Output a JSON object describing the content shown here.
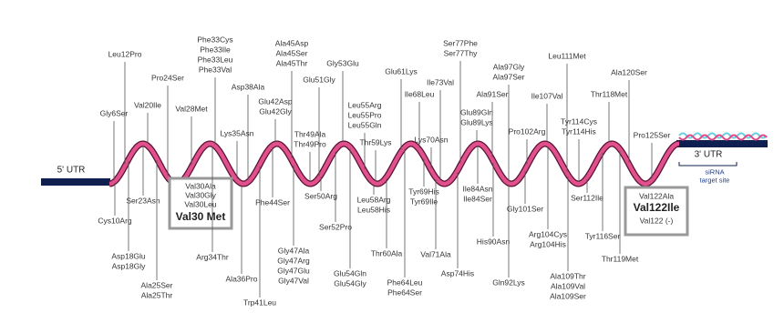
{
  "utr5": "5' UTR",
  "utr3": "3' UTR",
  "sirna": [
    "siRNA",
    "target site"
  ],
  "top_labels": [
    [
      "Leu12Pro"
    ],
    [
      "Gly6Ser"
    ],
    [
      "Val20Ile"
    ],
    [
      "Pro24Ser"
    ],
    [
      "Val28Met"
    ],
    [
      "Phe33Cys",
      "Phe33Ile",
      "Phe33Leu",
      "Phe33Val"
    ],
    [
      "Asp38Ala"
    ],
    [
      "Lys35Asn"
    ],
    [
      "Glu42Asp",
      "Glu42Gly"
    ],
    [
      "Ala45Asp",
      "Ala45Ser",
      "Ala45Thr"
    ],
    [
      "Glu51Gly"
    ],
    [
      "Gly53Glu"
    ],
    [
      "Thr49Ala",
      "Thr49Pro"
    ],
    [
      "Leu55Arg",
      "Leu55Pro",
      "Leu55Gln"
    ],
    [
      "Thr59Lys"
    ],
    [
      "Glu61Lys"
    ],
    [
      "Ile68Leu"
    ],
    [
      "Ile73Val"
    ],
    [
      "Lys70Asn"
    ],
    [
      "Ser77Phe",
      "Ser77Thy"
    ],
    [
      "Glu89Gln",
      "Glu89Lys"
    ],
    [
      "Ala97Gly",
      "Ala97Ser"
    ],
    [
      "Ala91Ser"
    ],
    [
      "Pro102Arg"
    ],
    [
      "Leu111Met"
    ],
    [
      "Ile107Val"
    ],
    [
      "Tyr114Cys",
      "Tyr114His"
    ],
    [
      "Ala120Ser"
    ],
    [
      "Thr118Met"
    ],
    [
      "Pro125Ser"
    ]
  ],
  "bottom_labels": [
    [
      "Cys10Arg"
    ],
    [
      "Ser23Asn"
    ],
    [
      "Asp18Glu",
      "Asp18Gly"
    ],
    [
      "Ala25Ser",
      "Ala25Thr"
    ],
    [
      "Arg34Thr"
    ],
    [
      "Ala36Pro"
    ],
    [
      "Trp41Leu"
    ],
    [
      "Phe44Ser"
    ],
    [
      "Gly47Ala",
      "Gly47Arg",
      "Gly47Glu",
      "Gly47Val"
    ],
    [
      "Ser50Arg"
    ],
    [
      "Ser52Pro"
    ],
    [
      "Glu54Gln",
      "Glu54Gly"
    ],
    [
      "Leu58Arg",
      "Leu58His"
    ],
    [
      "Thr60Ala"
    ],
    [
      "Phe64Leu",
      "Phe64Ser"
    ],
    [
      "Tyr69His",
      "Tyr69Ile"
    ],
    [
      "Val71Ala"
    ],
    [
      "Asp74His"
    ],
    [
      "Ile84Asn",
      "Ile84Ser"
    ],
    [
      "His90Asn"
    ],
    [
      "Gln92Lys"
    ],
    [
      "Gly101Ser"
    ],
    [
      "Arg104Cys",
      "Arg104His"
    ],
    [
      "Ala109Thr",
      "Ala109Val",
      "Ala109Ser"
    ],
    [
      "Ser112Ile"
    ],
    [
      "Tyr116Ser"
    ],
    [
      "Thr119Met"
    ]
  ],
  "box1": {
    "lines": [
      "Val30Ala",
      "Val30Gly",
      "Val30Leu"
    ],
    "main": "Val30 Met"
  },
  "box2": {
    "lines": [
      "Val122Ala"
    ],
    "main": "Val122Ile",
    "extra": "Val122 (-)"
  }
}
